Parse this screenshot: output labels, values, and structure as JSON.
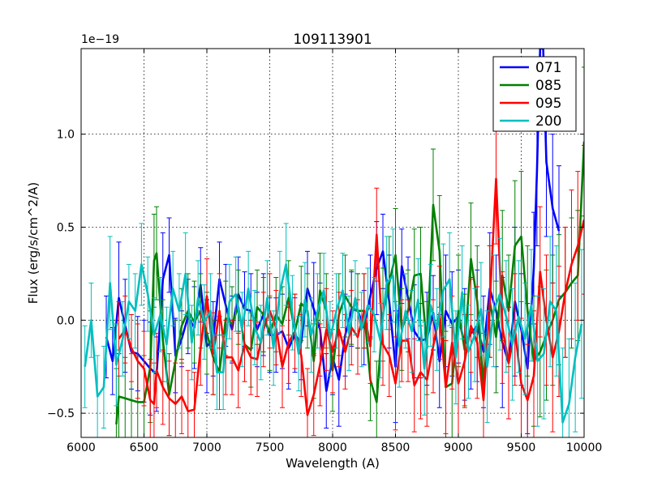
{
  "chart_data": {
    "type": "line",
    "title": "109113901",
    "xlabel": "Wavelength (A)",
    "ylabel": "Flux (erg/s/cm^2/A)",
    "offset_label": "1e−19",
    "xlim": [
      6000,
      10000
    ],
    "ylim": [
      -0.63,
      1.46
    ],
    "grid": true,
    "legend_position": "top-right",
    "x_ticks": [
      6000,
      6500,
      7000,
      7500,
      8000,
      8500,
      9000,
      9500,
      10000
    ],
    "x_tick_labels": [
      "6000",
      "6500",
      "7000",
      "7500",
      "8000",
      "8500",
      "9000",
      "9500",
      "10000"
    ],
    "y_ticks": [
      -0.5,
      0.0,
      0.5,
      1.0
    ],
    "y_tick_labels": [
      "−0.5",
      "0.0",
      "0.5",
      "1.0"
    ],
    "series": [
      {
        "name": "071",
        "color": "#0000ff",
        "x": [
          6200,
          6250,
          6300,
          6350,
          6400,
          6450,
          6500,
          6550,
          6600,
          6650,
          6700,
          6750,
          6800,
          6850,
          6900,
          6950,
          7000,
          7050,
          7100,
          7150,
          7200,
          7250,
          7300,
          7350,
          7400,
          7450,
          7500,
          7550,
          7600,
          7650,
          7700,
          7750,
          7800,
          7850,
          7900,
          7950,
          8000,
          8050,
          8100,
          8150,
          8200,
          8250,
          8300,
          8350,
          8400,
          8450,
          8500,
          8550,
          8600,
          8650,
          8700,
          8750,
          8800,
          8850,
          8900,
          8950,
          9000,
          9050,
          9100,
          9150,
          9200,
          9250,
          9300,
          9350,
          9400,
          9450,
          9500,
          9550,
          9600,
          9625,
          9650,
          9675,
          9700,
          9750,
          9800
        ],
        "y": [
          -0.09,
          -0.22,
          0.12,
          -0.03,
          -0.17,
          -0.18,
          -0.22,
          -0.26,
          -0.29,
          0.22,
          0.35,
          -0.19,
          -0.1,
          0.02,
          -0.04,
          0.19,
          -0.14,
          -0.1,
          0.22,
          0.08,
          -0.05,
          0.14,
          0.06,
          0.05,
          -0.05,
          0.03,
          -0.08,
          -0.08,
          -0.06,
          -0.15,
          -0.08,
          -0.12,
          0.17,
          0.06,
          -0.05,
          -0.38,
          -0.2,
          -0.32,
          -0.08,
          0.06,
          0.05,
          -0.04,
          0.13,
          0.28,
          0.37,
          0.1,
          -0.25,
          0.29,
          0.12,
          -0.06,
          -0.11,
          -0.1,
          0.04,
          -0.22,
          0.05,
          -0.02,
          0.02,
          -0.13,
          -0.07,
          -0.03,
          -0.17,
          0.17,
          0.05,
          -0.12,
          -0.23,
          0.1,
          -0.05,
          -0.26,
          0.28,
          0.8,
          1.46,
          1.46,
          0.85,
          0.6,
          0.48
        ],
        "err": [
          0.22,
          0.18,
          0.3,
          0.25,
          0.2,
          0.2,
          0.22,
          0.25,
          0.2,
          0.25,
          0.2,
          0.2,
          0.15,
          0.2,
          0.22,
          0.2,
          0.25,
          0.2,
          0.2,
          0.22,
          0.18,
          0.2,
          0.2,
          0.2,
          0.2,
          0.22,
          0.2,
          0.2,
          0.2,
          0.22,
          0.2,
          0.2,
          0.2,
          0.25,
          0.25,
          0.2,
          0.2,
          0.25,
          0.22,
          0.2,
          0.2,
          0.2,
          0.22,
          0.25,
          0.2,
          0.25,
          0.3,
          0.2,
          0.22,
          0.25,
          0.2,
          0.25,
          0.2,
          0.25,
          0.3,
          0.28,
          0.25,
          0.3,
          0.3,
          0.3,
          0.3,
          0.3,
          0.3,
          0.35,
          0.3,
          0.4,
          0.3,
          0.35,
          0.3,
          0.4,
          0.4,
          0.4,
          0.4,
          0.4,
          0.35
        ]
      },
      {
        "name": "085",
        "color": "#008000",
        "x": [
          6280,
          6300,
          6350,
          6400,
          6450,
          6500,
          6550,
          6580,
          6600,
          6650,
          6700,
          6750,
          6800,
          6850,
          6900,
          6950,
          7000,
          7050,
          7100,
          7150,
          7200,
          7250,
          7300,
          7350,
          7400,
          7450,
          7500,
          7550,
          7600,
          7650,
          7700,
          7750,
          7800,
          7850,
          7900,
          7950,
          8000,
          8050,
          8100,
          8150,
          8200,
          8250,
          8300,
          8350,
          8400,
          8450,
          8500,
          8550,
          8600,
          8650,
          8700,
          8750,
          8800,
          8850,
          8900,
          8950,
          9000,
          9050,
          9100,
          9150,
          9200,
          9250,
          9300,
          9350,
          9400,
          9450,
          9500,
          9550,
          9600,
          9650,
          9700,
          9750,
          9800,
          9850,
          9900,
          9950,
          10000
        ],
        "y": [
          -0.56,
          -0.41,
          -0.42,
          -0.43,
          -0.44,
          -0.44,
          -0.25,
          0.32,
          0.36,
          -0.11,
          -0.4,
          -0.22,
          -0.03,
          0.05,
          -0.01,
          0.05,
          -0.07,
          -0.2,
          -0.28,
          0.01,
          -0.02,
          0.07,
          -0.13,
          -0.16,
          0.07,
          0.03,
          -0.07,
          0.03,
          -0.02,
          0.12,
          -0.06,
          0.09,
          0.05,
          -0.22,
          0.16,
          0.05,
          -0.27,
          0.03,
          0.13,
          0.07,
          0.05,
          0.05,
          -0.32,
          -0.44,
          0.03,
          0.2,
          0.35,
          -0.05,
          0.05,
          0.24,
          0.25,
          -0.15,
          0.62,
          0.37,
          -0.36,
          -0.34,
          0.05,
          -0.16,
          0.33,
          0.1,
          -0.37,
          0.1,
          -0.09,
          0.24,
          0.05,
          0.4,
          0.45,
          0.05,
          -0.22,
          -0.17,
          -0.08,
          0.0,
          0.11,
          0.15,
          0.2,
          0.24,
          0.96
        ],
        "err": [
          0.3,
          0.25,
          0.22,
          0.25,
          0.25,
          0.25,
          0.3,
          0.25,
          0.25,
          0.22,
          0.22,
          0.22,
          0.2,
          0.2,
          0.22,
          0.2,
          0.22,
          0.2,
          0.2,
          0.2,
          0.2,
          0.2,
          0.2,
          0.2,
          0.2,
          0.2,
          0.2,
          0.2,
          0.2,
          0.2,
          0.2,
          0.2,
          0.2,
          0.2,
          0.2,
          0.2,
          0.22,
          0.22,
          0.22,
          0.2,
          0.2,
          0.2,
          0.22,
          0.22,
          0.25,
          0.25,
          0.25,
          0.22,
          0.22,
          0.25,
          0.25,
          0.25,
          0.3,
          0.3,
          0.3,
          0.3,
          0.3,
          0.3,
          0.3,
          0.3,
          0.3,
          0.3,
          0.3,
          0.35,
          0.3,
          0.35,
          0.35,
          0.35,
          0.35,
          0.35,
          0.35,
          0.35,
          0.35,
          0.35,
          0.35,
          0.35,
          0.4
        ]
      },
      {
        "name": "095",
        "color": "#ff0000",
        "x": [
          6300,
          6350,
          6400,
          6450,
          6500,
          6550,
          6580,
          6600,
          6650,
          6700,
          6750,
          6800,
          6850,
          6900,
          6950,
          7000,
          7050,
          7100,
          7150,
          7200,
          7250,
          7300,
          7350,
          7400,
          7450,
          7500,
          7550,
          7600,
          7650,
          7700,
          7750,
          7800,
          7850,
          7900,
          7950,
          8000,
          8050,
          8100,
          8150,
          8200,
          8250,
          8300,
          8350,
          8400,
          8450,
          8500,
          8550,
          8600,
          8650,
          8700,
          8750,
          8800,
          8850,
          8900,
          8950,
          9000,
          9050,
          9100,
          9150,
          9200,
          9250,
          9300,
          9350,
          9400,
          9450,
          9500,
          9550,
          9600,
          9650,
          9700,
          9750,
          9800,
          9850,
          9900,
          9950,
          10000
        ],
        "y": [
          -0.1,
          -0.05,
          -0.15,
          -0.22,
          -0.26,
          -0.43,
          -0.45,
          -0.27,
          -0.36,
          -0.42,
          -0.45,
          -0.41,
          -0.49,
          -0.48,
          -0.15,
          0.13,
          -0.18,
          0.05,
          -0.2,
          -0.2,
          -0.27,
          -0.13,
          -0.2,
          -0.21,
          -0.05,
          0.05,
          -0.04,
          -0.25,
          -0.12,
          -0.06,
          -0.19,
          -0.51,
          -0.4,
          -0.24,
          -0.05,
          -0.17,
          -0.05,
          -0.17,
          -0.04,
          -0.09,
          0.05,
          -0.14,
          0.46,
          -0.13,
          -0.19,
          -0.34,
          -0.11,
          -0.11,
          -0.35,
          -0.28,
          -0.32,
          -0.14,
          0.04,
          -0.36,
          -0.12,
          -0.34,
          -0.22,
          -0.03,
          -0.12,
          -0.43,
          0.1,
          0.76,
          -0.04,
          -0.23,
          -0.05,
          -0.34,
          -0.43,
          -0.3,
          0.26,
          0.0,
          -0.2,
          -0.06,
          0.15,
          0.3,
          0.4,
          0.54
        ],
        "err": [
          0.2,
          0.18,
          0.18,
          0.2,
          0.2,
          0.22,
          0.22,
          0.2,
          0.2,
          0.2,
          0.22,
          0.2,
          0.22,
          0.2,
          0.2,
          0.2,
          0.22,
          0.2,
          0.2,
          0.2,
          0.2,
          0.2,
          0.2,
          0.2,
          0.2,
          0.2,
          0.2,
          0.22,
          0.22,
          0.2,
          0.22,
          0.25,
          0.22,
          0.22,
          0.22,
          0.22,
          0.2,
          0.2,
          0.2,
          0.2,
          0.2,
          0.2,
          0.25,
          0.22,
          0.22,
          0.25,
          0.22,
          0.22,
          0.25,
          0.25,
          0.25,
          0.25,
          0.25,
          0.25,
          0.25,
          0.3,
          0.25,
          0.25,
          0.3,
          0.3,
          0.3,
          0.35,
          0.3,
          0.3,
          0.3,
          0.35,
          0.3,
          0.35,
          0.35,
          0.35,
          0.4,
          0.35,
          0.35,
          0.4,
          0.4,
          0.4
        ]
      },
      {
        "name": "200",
        "color": "#00bfbf",
        "x": [
          6030,
          6080,
          6130,
          6180,
          6230,
          6280,
          6330,
          6380,
          6430,
          6480,
          6530,
          6580,
          6630,
          6680,
          6730,
          6780,
          6830,
          6880,
          6930,
          6980,
          7030,
          7080,
          7130,
          7180,
          7230,
          7280,
          7330,
          7380,
          7430,
          7480,
          7530,
          7580,
          7630,
          7680,
          7730,
          7780,
          7830,
          7880,
          7930,
          7980,
          8030,
          8080,
          8130,
          8180,
          8230,
          8280,
          8330,
          8380,
          8430,
          8480,
          8530,
          8580,
          8630,
          8680,
          8730,
          8780,
          8830,
          8880,
          8930,
          8980,
          9030,
          9080,
          9130,
          9180,
          9230,
          9280,
          9330,
          9380,
          9430,
          9480,
          9530,
          9580,
          9630,
          9680,
          9730,
          9780,
          9830,
          9880,
          9930,
          9980
        ],
        "y": [
          -0.25,
          0.0,
          -0.41,
          -0.36,
          0.2,
          -0.24,
          -0.1,
          0.1,
          0.05,
          0.3,
          0.14,
          -0.08,
          0.03,
          -0.13,
          0.17,
          0.05,
          0.25,
          -0.12,
          0.12,
          -0.01,
          0.05,
          -0.28,
          -0.28,
          0.1,
          0.14,
          -0.05,
          0.17,
          -0.04,
          -0.12,
          0.12,
          -0.15,
          0.15,
          0.3,
          0.04,
          -0.18,
          0.11,
          -0.08,
          0.05,
          0.16,
          -0.1,
          0.05,
          0.16,
          -0.07,
          0.12,
          -0.05,
          0.08,
          0.03,
          -0.11,
          0.2,
          0.24,
          -0.14,
          0.05,
          -0.06,
          0.11,
          -0.26,
          0.08,
          -0.05,
          0.16,
          0.22,
          -0.2,
          0.15,
          -0.17,
          -0.08,
          0.06,
          -0.25,
          0.05,
          0.14,
          0.02,
          -0.13,
          0.02,
          -0.1,
          0.08,
          -0.22,
          -0.18,
          0.1,
          0.05,
          -0.55,
          -0.45,
          -0.2,
          -0.02
        ],
        "err": [
          0.22,
          0.2,
          0.22,
          0.22,
          0.25,
          0.22,
          0.2,
          0.2,
          0.2,
          0.22,
          0.2,
          0.2,
          0.2,
          0.2,
          0.2,
          0.2,
          0.22,
          0.2,
          0.2,
          0.2,
          0.2,
          0.2,
          0.2,
          0.2,
          0.2,
          0.2,
          0.2,
          0.2,
          0.2,
          0.2,
          0.2,
          0.22,
          0.22,
          0.2,
          0.2,
          0.2,
          0.2,
          0.2,
          0.2,
          0.2,
          0.2,
          0.2,
          0.2,
          0.2,
          0.2,
          0.2,
          0.2,
          0.2,
          0.25,
          0.25,
          0.22,
          0.2,
          0.22,
          0.22,
          0.25,
          0.22,
          0.22,
          0.25,
          0.25,
          0.25,
          0.25,
          0.25,
          0.25,
          0.25,
          0.3,
          0.3,
          0.3,
          0.3,
          0.3,
          0.3,
          0.3,
          0.3,
          0.35,
          0.35,
          0.35,
          0.35,
          0.4,
          0.35,
          0.4,
          0.4
        ]
      }
    ]
  }
}
